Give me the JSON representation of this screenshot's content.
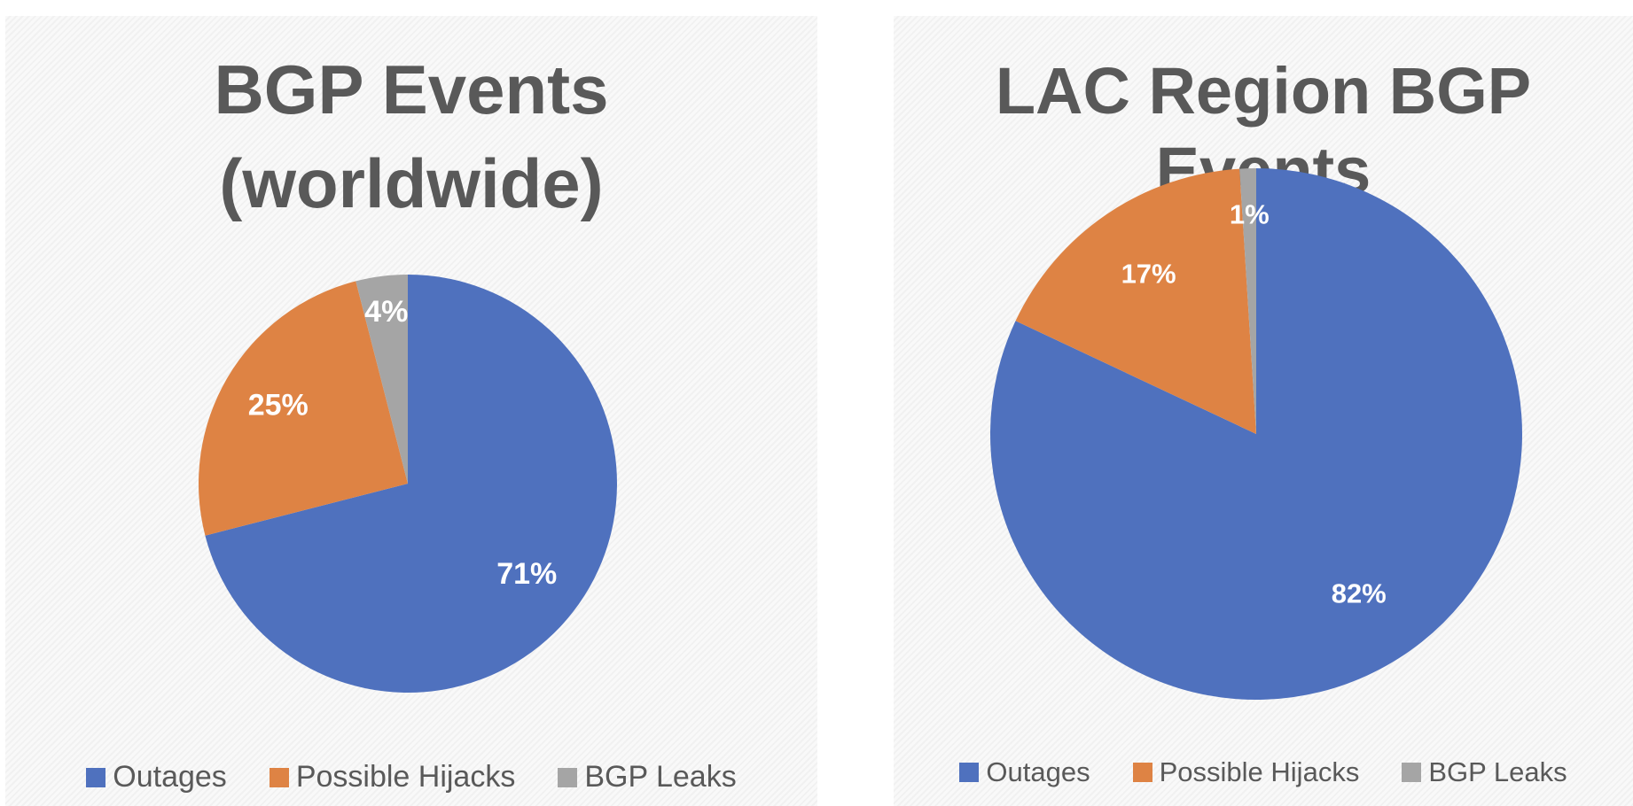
{
  "chart_data": [
    {
      "type": "pie",
      "title": "BGP Events (worldwide)",
      "categories": [
        "Outages",
        "Possible Hijacks",
        "BGP Leaks"
      ],
      "values": [
        71,
        25,
        4
      ],
      "value_labels": [
        "71%",
        "25%",
        "4%"
      ],
      "colors": [
        "#4f71be",
        "#de8344",
        "#a5a5a5"
      ],
      "legend": "bottom"
    },
    {
      "type": "pie",
      "title": "LAC Region BGP Events",
      "categories": [
        "Outages",
        "Possible Hijacks",
        "BGP Leaks"
      ],
      "values": [
        82,
        17,
        1
      ],
      "value_labels": [
        "82%",
        "17%",
        "1%"
      ],
      "colors": [
        "#4f71be",
        "#de8344",
        "#a5a5a5"
      ],
      "legend": "bottom"
    }
  ]
}
